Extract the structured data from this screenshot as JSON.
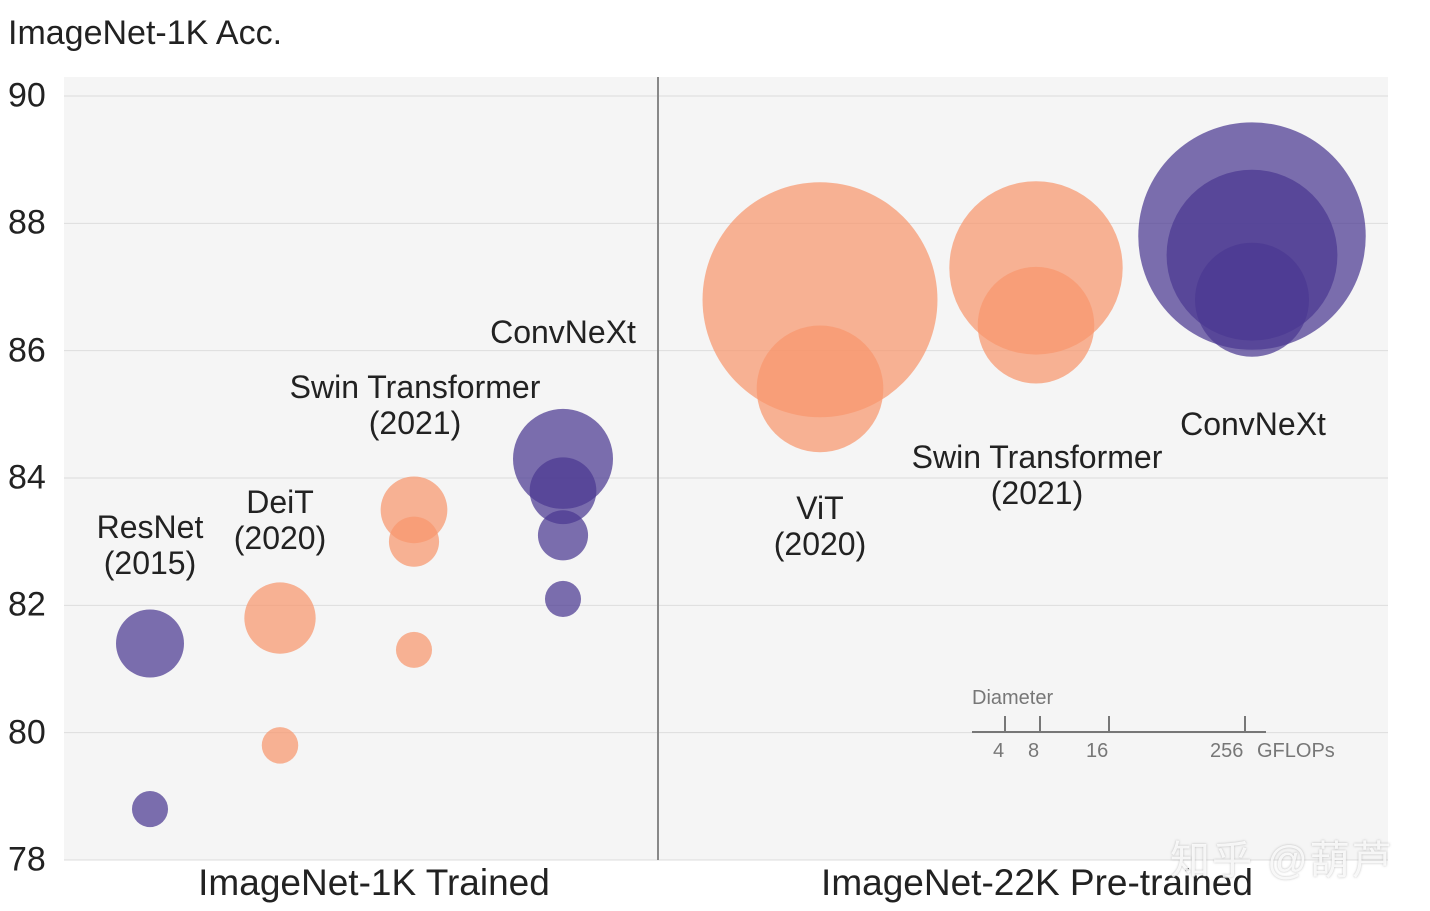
{
  "chart_data": {
    "type": "scatter",
    "subtype": "bubble",
    "ylabel": "ImageNet-1K Acc.",
    "ylim": [
      78,
      90
    ],
    "yticks": [
      78,
      80,
      82,
      84,
      86,
      88,
      90
    ],
    "grid": "horizontal",
    "colors": {
      "convnet": "#4b3991",
      "transformer": "#f8976d",
      "background": "#f5f5f5",
      "divider": "#888888"
    },
    "groups": [
      {
        "label": "ImageNet-1K Trained",
        "models": [
          {
            "name": "ResNet",
            "year": "(2015)",
            "family": "convnet",
            "points": [
              {
                "acc": 78.8,
                "gflops": 4.5
              },
              {
                "acc": 81.4,
                "gflops": 16
              }
            ]
          },
          {
            "name": "DeiT",
            "year": "(2020)",
            "family": "transformer",
            "points": [
              {
                "acc": 79.8,
                "gflops": 4.6
              },
              {
                "acc": 81.8,
                "gflops": 17.6
              }
            ]
          },
          {
            "name": "Swin Transformer",
            "year": "(2021)",
            "family": "transformer",
            "points": [
              {
                "acc": 81.3,
                "gflops": 4.5
              },
              {
                "acc": 83.0,
                "gflops": 8.7
              },
              {
                "acc": 83.5,
                "gflops": 15.4
              }
            ]
          },
          {
            "name": "ConvNeXt",
            "year": "",
            "family": "convnet",
            "points": [
              {
                "acc": 82.1,
                "gflops": 4.5
              },
              {
                "acc": 83.1,
                "gflops": 8.7
              },
              {
                "acc": 83.8,
                "gflops": 15.4
              },
              {
                "acc": 84.3,
                "gflops": 34.6
              }
            ]
          }
        ]
      },
      {
        "label": "ImageNet-22K Pre-trained",
        "models": [
          {
            "name": "ViT",
            "year": "(2020)",
            "family": "transformer",
            "points": [
              {
                "acc": 85.4,
                "gflops": 55.5
              },
              {
                "acc": 86.8,
                "gflops": 191
              }
            ]
          },
          {
            "name": "Swin Transformer",
            "year": "(2021)",
            "family": "transformer",
            "points": [
              {
                "acc": 86.4,
                "gflops": 47
              },
              {
                "acc": 87.3,
                "gflops": 104
              }
            ]
          },
          {
            "name": "ConvNeXt",
            "year": "",
            "family": "convnet",
            "points": [
              {
                "acc": 86.8,
                "gflops": 45
              },
              {
                "acc": 87.5,
                "gflops": 101
              },
              {
                "acc": 87.8,
                "gflops": 179
              }
            ]
          }
        ]
      }
    ],
    "size_legend": {
      "title": "Diameter",
      "ticks": [
        "4",
        "8",
        "16",
        "256"
      ],
      "unit": "GFLOPs"
    }
  },
  "watermark": "知乎 @葫芦"
}
